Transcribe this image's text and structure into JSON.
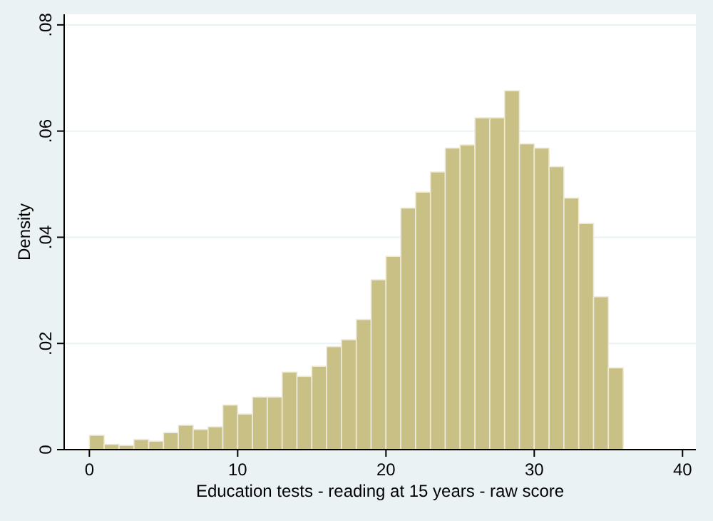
{
  "chart_data": {
    "type": "histogram",
    "xlabel": "Education tests - reading at 15 years - raw score",
    "ylabel": "Density",
    "bins": [
      0,
      1,
      2,
      3,
      4,
      5,
      6,
      7,
      8,
      9,
      10,
      11,
      12,
      13,
      14,
      15,
      16,
      17,
      18,
      19,
      20,
      21,
      22,
      23,
      24,
      25,
      26,
      27,
      28,
      29,
      30,
      31,
      32,
      33,
      34,
      35,
      36
    ],
    "values": [
      0.0027,
      0.001,
      0.0008,
      0.0019,
      0.0016,
      0.0032,
      0.0046,
      0.0038,
      0.0043,
      0.0084,
      0.0067,
      0.0099,
      0.0099,
      0.0146,
      0.0138,
      0.0157,
      0.0194,
      0.0207,
      0.0245,
      0.032,
      0.0364,
      0.0455,
      0.0485,
      0.0523,
      0.0568,
      0.0574,
      0.0625,
      0.0625,
      0.0676,
      0.0576,
      0.0568,
      0.0533,
      0.0474,
      0.0426,
      0.0288,
      0.0154
    ],
    "color": "#c9c085",
    "xlim": [
      -1.7,
      40.9
    ],
    "xticks": [
      0,
      10,
      20,
      30,
      40
    ],
    "ylim": [
      0,
      0.082
    ],
    "yticks": [
      {
        "value": 0,
        "label": "0"
      },
      {
        "value": 0.02,
        "label": ".02"
      },
      {
        "value": 0.04,
        "label": ".04"
      },
      {
        "value": 0.06,
        "label": ".06"
      },
      {
        "value": 0.08,
        "label": ".08"
      }
    ],
    "grid": "y"
  }
}
